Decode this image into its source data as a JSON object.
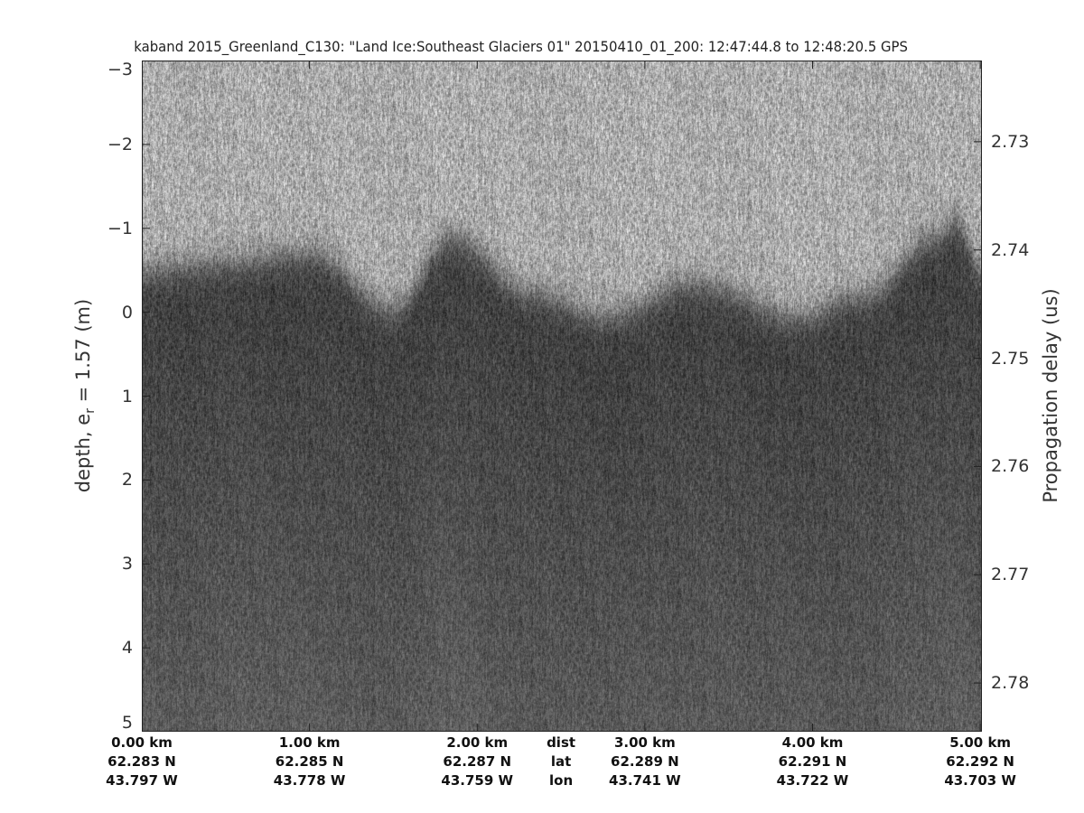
{
  "chart_data": {
    "type": "heatmap",
    "title": "kaband 2015_Greenland_C130: \"Land Ice:Southeast Glaciers 01\"  20150410_01_200: 12:47:44.8 to 12:48:20.5 GPS",
    "ylabel_left_prefix": "depth, e",
    "ylabel_left_sub": "r",
    "ylabel_left_suffix": " = 1.57 (m)",
    "ylabel_right": "Propagation delay (us)",
    "ylim_left": [
      -3,
      5
    ],
    "ylim_right": [
      2.7225,
      2.7845
    ],
    "y_reversed": true,
    "colormap": "gray",
    "left_ticks": [
      "-3",
      "-2",
      "-1",
      "0",
      "1",
      "2",
      "3",
      "4",
      "5"
    ],
    "right_ticks": [
      "2.73",
      "2.74",
      "2.75",
      "2.76",
      "2.77",
      "2.78"
    ],
    "x_rows_labels": [
      "dist",
      "lat",
      "lon"
    ],
    "x_ticks": [
      {
        "dist": "0.00 km",
        "lat": "62.283 N",
        "lon": "43.797 W",
        "km": 0
      },
      {
        "dist": "1.00 km",
        "lat": "62.285 N",
        "lon": "43.778 W",
        "km": 1
      },
      {
        "dist": "2.00 km",
        "lat": "62.287 N",
        "lon": "43.759 W",
        "km": 2
      },
      {
        "dist": "3.00 km",
        "lat": "62.289 N",
        "lon": "43.741 W",
        "km": 3
      },
      {
        "dist": "4.00 km",
        "lat": "62.291 N",
        "lon": "43.722 W",
        "km": 4
      },
      {
        "dist": "5.00 km",
        "lat": "62.292 N",
        "lon": "43.703 W",
        "km": 5
      }
    ],
    "xlim_km": [
      0,
      5.01
    ],
    "surface_profile": {
      "distance_km": [
        0,
        0.5,
        1.0,
        1.5,
        1.85,
        2.3,
        2.75,
        3.3,
        3.9,
        4.3,
        4.75,
        4.85,
        5.01
      ],
      "depth_m": [
        -0.5,
        -0.6,
        -0.7,
        -0.05,
        -0.9,
        -0.25,
        0.05,
        -0.35,
        0.05,
        -0.2,
        -0.9,
        -1.1,
        -0.5
      ]
    }
  }
}
